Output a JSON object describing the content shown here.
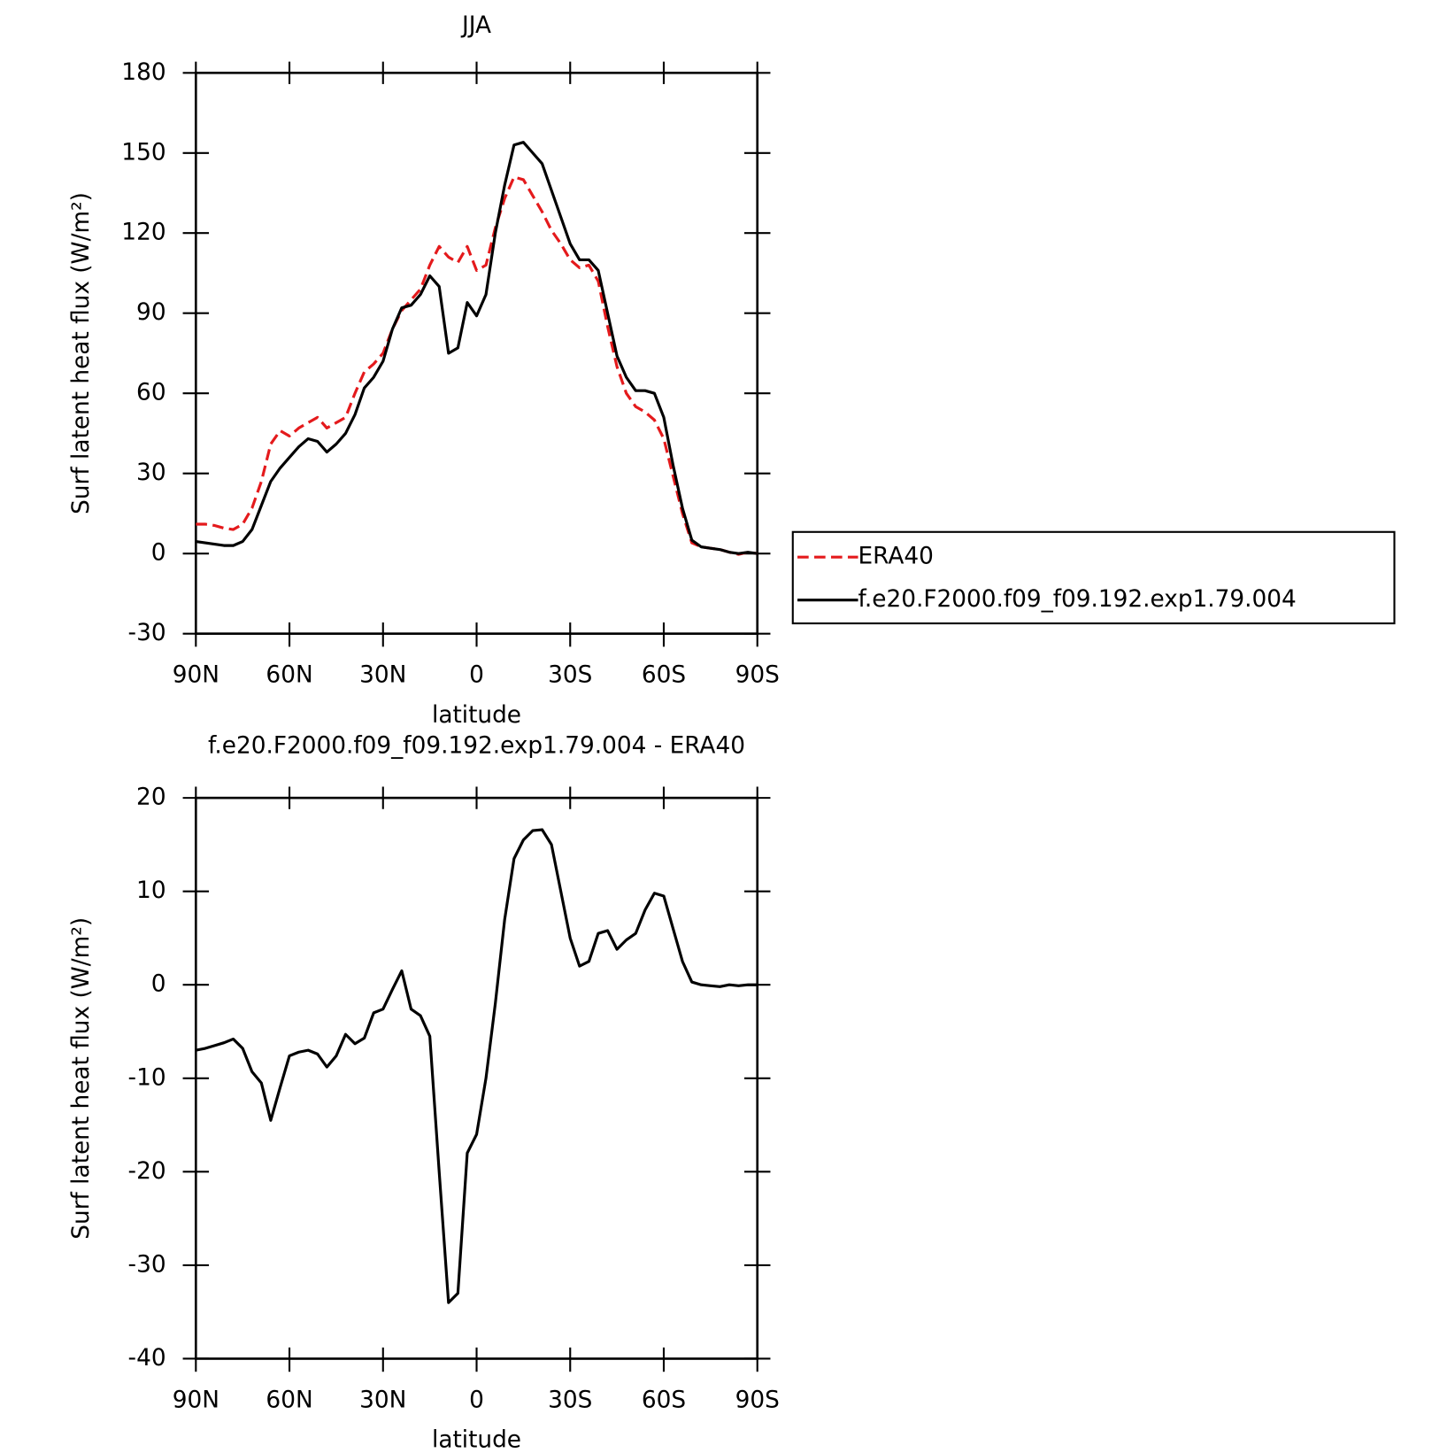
{
  "chart_data": [
    {
      "type": "line",
      "title": "JJA",
      "x_label": "latitude",
      "y_label": "Surf latent heat flux (W/m²)",
      "x": [
        90,
        87,
        84,
        81,
        78,
        75,
        72,
        69,
        66,
        63,
        60,
        57,
        54,
        51,
        48,
        45,
        42,
        39,
        36,
        33,
        30,
        27,
        24,
        21,
        18,
        15,
        12,
        9,
        6,
        3,
        0,
        -3,
        -6,
        -9,
        -12,
        -15,
        -18,
        -21,
        -24,
        -27,
        -30,
        -33,
        -36,
        -39,
        -42,
        -45,
        -48,
        -51,
        -54,
        -57,
        -60,
        -63,
        -66,
        -69,
        -72,
        -75,
        -78,
        -81,
        -84,
        -87,
        -90
      ],
      "xlim": [
        90,
        -90
      ],
      "xticks": [
        {
          "value": 90,
          "label": "90N"
        },
        {
          "value": 60,
          "label": "60N"
        },
        {
          "value": 30,
          "label": "30N"
        },
        0,
        {
          "value": -30,
          "label": "30S"
        },
        {
          "value": -60,
          "label": "60S"
        },
        {
          "value": -90,
          "label": "90S"
        }
      ],
      "ylim": [
        -30,
        180
      ],
      "yticks": [
        -30,
        0,
        30,
        60,
        90,
        120,
        150,
        180
      ],
      "legend": "right",
      "series": [
        {
          "name": "ERA40",
          "color": "#e41a1c",
          "dash": true,
          "values": [
            11,
            11,
            10.5,
            9.5,
            9,
            11,
            17,
            27,
            41,
            46,
            44,
            47,
            49,
            51,
            47,
            49,
            51,
            60,
            68,
            71,
            75,
            84,
            91,
            95,
            99,
            108,
            115,
            111,
            109,
            115,
            106,
            108,
            122,
            133,
            141,
            140,
            134,
            128,
            121,
            116,
            110,
            107,
            108,
            102,
            85,
            70,
            60,
            55,
            53,
            50,
            43,
            29,
            15,
            4,
            2.5,
            2,
            1.5,
            0.5,
            -0.3,
            0.5,
            0
          ]
        },
        {
          "name": "f.e20.F2000.f09_f09.192.exp1.79.004",
          "color": "#000000",
          "dash": false,
          "values": [
            4.5,
            4,
            3.5,
            3,
            3,
            4.5,
            9,
            18,
            27,
            32,
            36,
            40,
            43,
            42,
            38,
            41,
            45,
            52,
            62,
            66,
            72,
            84,
            92,
            93,
            97,
            104,
            100,
            75,
            77,
            94,
            89,
            97,
            120,
            138,
            153,
            154,
            150,
            146,
            136,
            126,
            116,
            110,
            110,
            106,
            90,
            74,
            66,
            61,
            61,
            60,
            51,
            33,
            17,
            5,
            2.5,
            2,
            1.5,
            0.5,
            0,
            0.5,
            0
          ]
        }
      ]
    },
    {
      "type": "line",
      "title": "f.e20.F2000.f09_f09.192.exp1.79.004 - ERA40",
      "x_label": "latitude",
      "y_label": "Surf latent heat flux (W/m²)",
      "x": [
        90,
        87,
        84,
        81,
        78,
        75,
        72,
        69,
        66,
        63,
        60,
        57,
        54,
        51,
        48,
        45,
        42,
        39,
        36,
        33,
        30,
        27,
        24,
        21,
        18,
        15,
        12,
        9,
        6,
        3,
        0,
        -3,
        -6,
        -9,
        -12,
        -15,
        -18,
        -21,
        -24,
        -27,
        -30,
        -33,
        -36,
        -39,
        -42,
        -45,
        -48,
        -51,
        -54,
        -57,
        -60,
        -63,
        -66,
        -69,
        -72,
        -75,
        -78,
        -81,
        -84,
        -87,
        -90
      ],
      "xlim": [
        90,
        -90
      ],
      "xticks": [
        {
          "value": 90,
          "label": "90N"
        },
        {
          "value": 60,
          "label": "60N"
        },
        {
          "value": 30,
          "label": "30N"
        },
        0,
        {
          "value": -30,
          "label": "30S"
        },
        {
          "value": -60,
          "label": "60S"
        },
        {
          "value": -90,
          "label": "90S"
        }
      ],
      "ylim": [
        -40,
        20
      ],
      "yticks": [
        -40,
        -30,
        -20,
        -10,
        0,
        10,
        20
      ],
      "series": [
        {
          "color": "#000000",
          "dash": false,
          "values": [
            -7,
            -6.8,
            -6.5,
            -6.2,
            -5.8,
            -6.8,
            -9.3,
            -10.5,
            -14.5,
            -11,
            -7.6,
            -7.2,
            -7,
            -7.4,
            -8.8,
            -7.6,
            -5.3,
            -6.3,
            -5.7,
            -3,
            -2.6,
            -0.5,
            1.5,
            -2.6,
            -3.3,
            -5.5,
            -20,
            -34,
            -33,
            -18,
            -16,
            -10,
            -2,
            7,
            13.5,
            15.5,
            16.5,
            16.6,
            15,
            10,
            5,
            2,
            2.5,
            5.5,
            5.8,
            3.8,
            4.8,
            5.5,
            8,
            9.8,
            9.5,
            6,
            2.5,
            0.3,
            0,
            -0.1,
            -0.2,
            0,
            -0.1,
            0,
            0
          ]
        }
      ]
    }
  ]
}
